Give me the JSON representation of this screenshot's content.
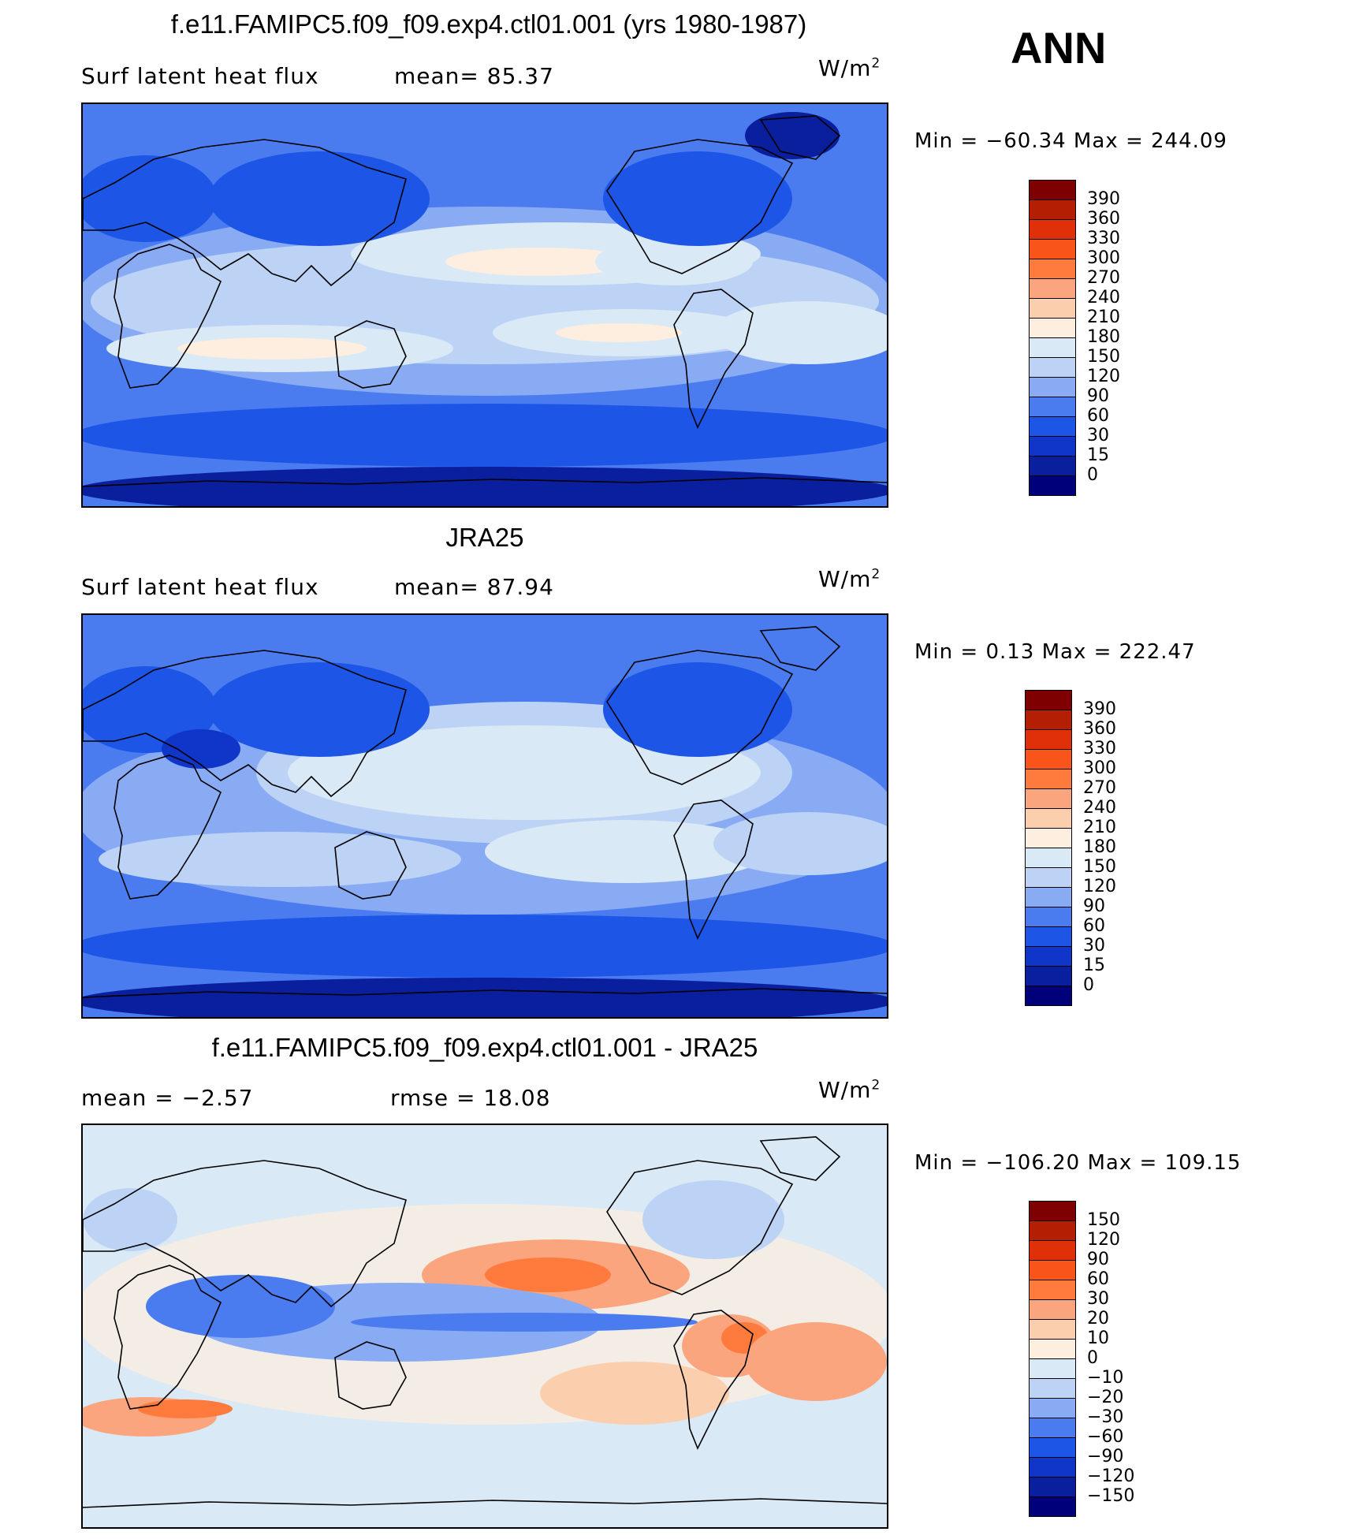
{
  "season": "ANN",
  "panels": [
    {
      "title": "f.e11.FAMIPC5.f09_f09.exp4.ctl01.001 (yrs 1980-1987)",
      "left_text": "Surf  latent  heat  flux",
      "right_text": "mean=   85.37",
      "units": "W/m",
      "units_sup": "2",
      "minmax": "Min  =  −60.34  Max  =  244.09",
      "colorbar_labels": [
        "390",
        "360",
        "330",
        "300",
        "270",
        "240",
        "210",
        "180",
        "150",
        "120",
        "90",
        "60",
        "30",
        "15",
        "0"
      ],
      "colors": [
        "#7f0000",
        "#b41e02",
        "#e0300a",
        "#f9541a",
        "#ff7a3d",
        "#fba57e",
        "#fbcfae",
        "#fdeedf",
        "#dae9f6",
        "#bcd3f5",
        "#88abf4",
        "#4a7cf0",
        "#1d55e6",
        "#0f36c9",
        "#0a1f9d",
        "#00007a"
      ]
    },
    {
      "title": "JRA25",
      "left_text": "Surf  latent  heat  flux",
      "right_text": "mean=   87.94",
      "units": "W/m",
      "units_sup": "2",
      "minmax": "Min  =    0.13  Max  =  222.47",
      "colorbar_labels": [
        "390",
        "360",
        "330",
        "300",
        "270",
        "240",
        "210",
        "180",
        "150",
        "120",
        "90",
        "60",
        "30",
        "15",
        "0"
      ],
      "colors": [
        "#7f0000",
        "#b41e02",
        "#e0300a",
        "#f9541a",
        "#ff7a3d",
        "#fba57e",
        "#fbcfae",
        "#fdeedf",
        "#dae9f6",
        "#bcd3f5",
        "#88abf4",
        "#4a7cf0",
        "#1d55e6",
        "#0f36c9",
        "#0a1f9d",
        "#00007a"
      ]
    },
    {
      "title": "f.e11.FAMIPC5.f09_f09.exp4.ctl01.001 - JRA25",
      "left_text": "mean  =    −2.57",
      "right_text": "rmse  =    18.08",
      "units": "W/m",
      "units_sup": "2",
      "minmax": "Min  =  −106.20  Max  =  109.15",
      "colorbar_labels": [
        "150",
        "120",
        "90",
        "60",
        "30",
        "20",
        "10",
        "0",
        "−10",
        "−20",
        "−30",
        "−60",
        "−90",
        "−120",
        "−150"
      ],
      "colors": [
        "#7f0000",
        "#b41e02",
        "#e0300a",
        "#f9541a",
        "#ff7a3d",
        "#fba57e",
        "#fbcfae",
        "#fdeedf",
        "#dae9f6",
        "#bcd3f5",
        "#88abf4",
        "#4a7cf0",
        "#1d55e6",
        "#0f36c9",
        "#0a1f9d",
        "#00007a"
      ]
    }
  ],
  "chart_data": [
    {
      "type": "heatmap",
      "title": "f.e11.FAMIPC5.f09_f09.exp4.ctl01.001 (yrs 1980-1987)",
      "variable": "Surf latent heat flux",
      "units": "W/m2",
      "mean": 85.37,
      "min": -60.34,
      "max": 244.09,
      "contour_levels": [
        0,
        15,
        30,
        60,
        90,
        120,
        150,
        180,
        210,
        240,
        270,
        300,
        330,
        360,
        390
      ]
    },
    {
      "type": "heatmap",
      "title": "JRA25",
      "variable": "Surf latent heat flux",
      "units": "W/m2",
      "mean": 87.94,
      "min": 0.13,
      "max": 222.47,
      "contour_levels": [
        0,
        15,
        30,
        60,
        90,
        120,
        150,
        180,
        210,
        240,
        270,
        300,
        330,
        360,
        390
      ]
    },
    {
      "type": "heatmap",
      "title": "f.e11.FAMIPC5.f09_f09.exp4.ctl01.001 - JRA25",
      "units": "W/m2",
      "mean": -2.57,
      "rmse": 18.08,
      "min": -106.2,
      "max": 109.15,
      "contour_levels": [
        -150,
        -120,
        -90,
        -60,
        -30,
        -20,
        -10,
        0,
        10,
        20,
        30,
        60,
        90,
        120,
        150
      ]
    }
  ]
}
